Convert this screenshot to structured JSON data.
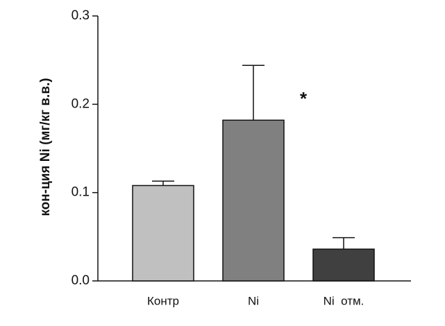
{
  "chart_data": {
    "type": "bar",
    "y_label": "кон-ция Ni (мг/кг в.в.)",
    "categories": [
      "Контр",
      "Ni",
      "Ni  отм."
    ],
    "values": [
      0.108,
      0.182,
      0.036
    ],
    "errors": [
      0.005,
      0.062,
      0.013
    ],
    "colors": [
      "#c0c0c0",
      "#808080",
      "#404040"
    ],
    "ylim": [
      0,
      0.3
    ],
    "yticks": [
      {
        "value": 0,
        "label": "0.0"
      },
      0.1,
      0.2,
      0.3
    ],
    "annotation": "*"
  }
}
